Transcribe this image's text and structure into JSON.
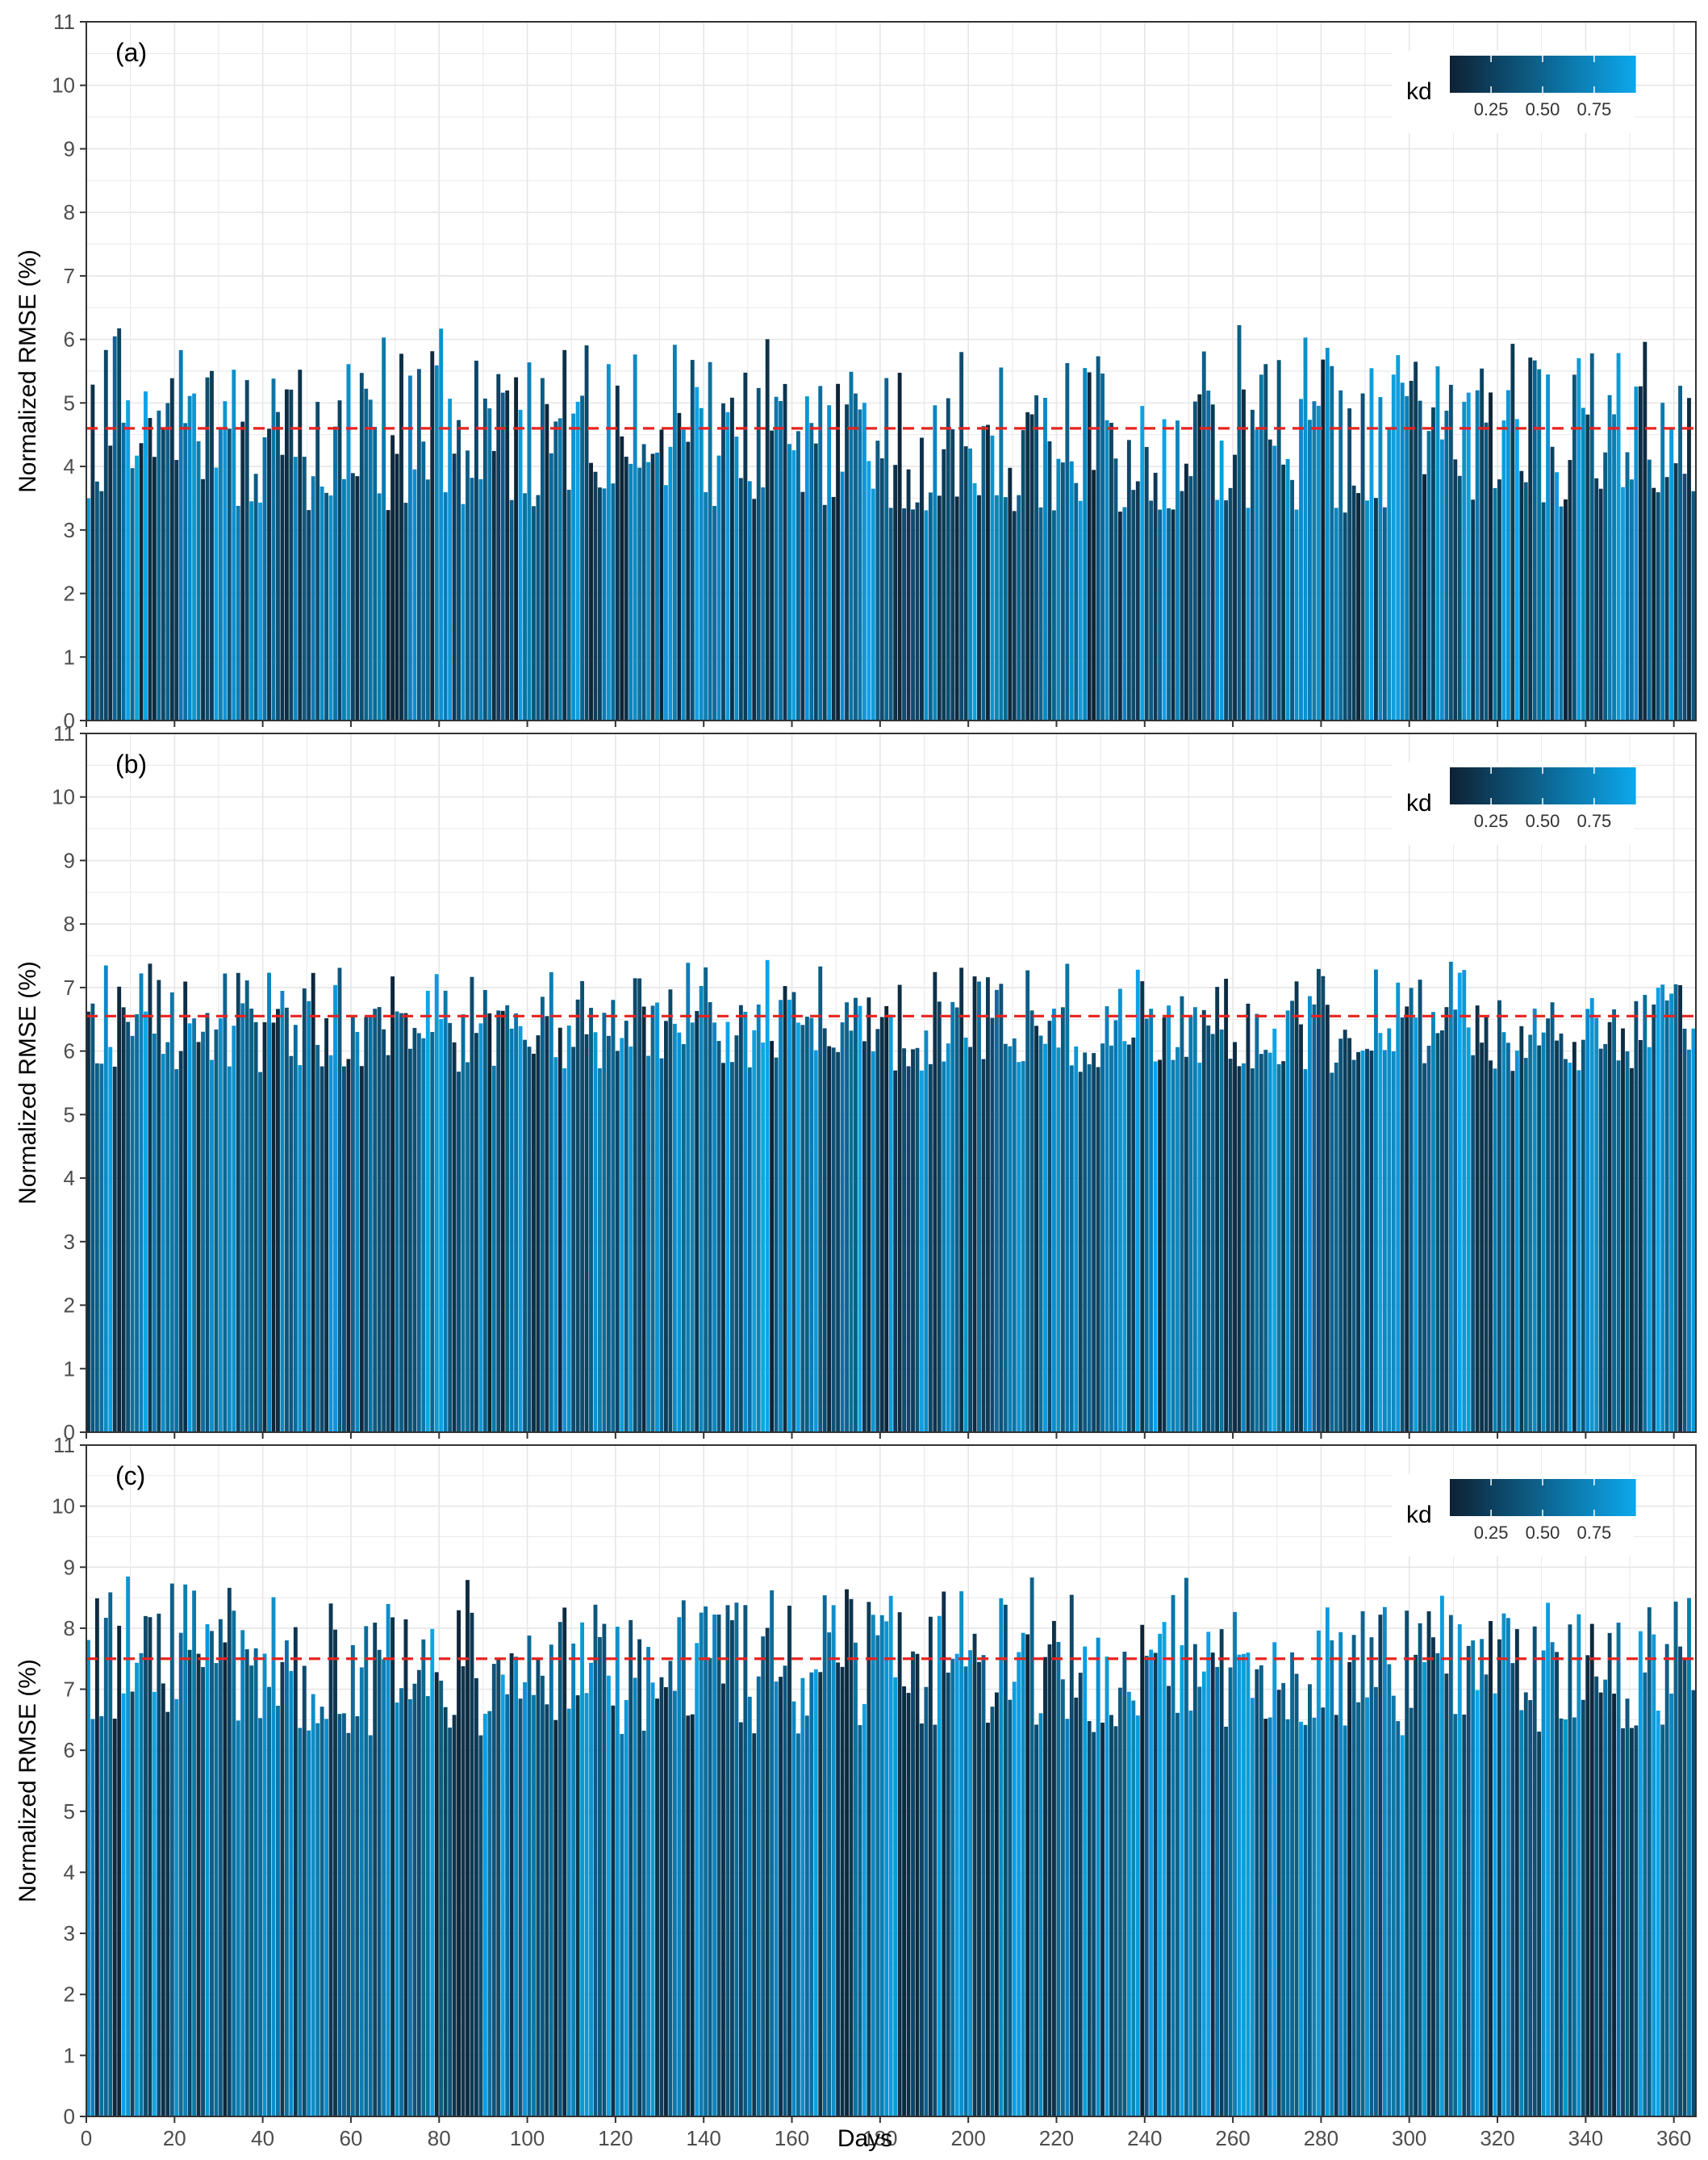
{
  "figure": {
    "xlabel": "Days",
    "x_ticks": [
      "0",
      "20",
      "40",
      "60",
      "80",
      "100",
      "120",
      "140",
      "160",
      "180",
      "200",
      "220",
      "240",
      "260",
      "280",
      "300",
      "320",
      "340",
      "360"
    ],
    "y_ticks": [
      "0",
      "1",
      "2",
      "3",
      "4",
      "5",
      "6",
      "7",
      "8",
      "9",
      "10",
      "11"
    ],
    "colors": {
      "bar_low": "#0d2336",
      "bar_high": "#0ca6ea",
      "mean_line": "#e8231f",
      "grid": "#e6e6e6",
      "frame": "#333333"
    }
  },
  "chart_data": [
    {
      "type": "bar",
      "panel_label": "(a)",
      "ylabel": "Normalized RMSE (%)",
      "xlabel": "",
      "xlim": [
        0,
        365
      ],
      "ylim": [
        0,
        11
      ],
      "n_days": 365,
      "value_range": [
        3.0,
        6.3
      ],
      "mean_line_value": 4.6,
      "color_variable": "kd",
      "legend": {
        "title": "kd",
        "ticks": [
          "0.25",
          "0.50",
          "0.75"
        ],
        "range": [
          0.05,
          0.95
        ],
        "position": "top-right"
      },
      "values_note": "365 daily bars; values vary roughly between 3.0 and 6.3"
    },
    {
      "type": "bar",
      "panel_label": "(b)",
      "ylabel": "Normalized RMSE (%)",
      "xlabel": "",
      "xlim": [
        0,
        365
      ],
      "ylim": [
        0,
        11
      ],
      "n_days": 365,
      "value_range": [
        5.5,
        7.5
      ],
      "mean_line_value": 6.55,
      "color_variable": "kd",
      "legend": {
        "title": "kd",
        "ticks": [
          "0.25",
          "0.50",
          "0.75"
        ],
        "range": [
          0.05,
          0.95
        ],
        "position": "top-right"
      },
      "values_note": "365 daily bars; values vary roughly between 5.5 and 7.5"
    },
    {
      "type": "bar",
      "panel_label": "(c)",
      "ylabel": "Normalized RMSE (%)",
      "xlabel": "Days",
      "xlim": [
        0,
        365
      ],
      "ylim": [
        0,
        11
      ],
      "n_days": 365,
      "value_range": [
        6.0,
        9.0
      ],
      "mean_line_value": 7.5,
      "color_variable": "kd",
      "legend": {
        "title": "kd",
        "ticks": [
          "0.25",
          "0.50",
          "0.75"
        ],
        "range": [
          0.05,
          0.95
        ],
        "position": "top-right"
      },
      "values_note": "365 daily bars; values vary roughly between 6.0 and 9.0"
    }
  ]
}
